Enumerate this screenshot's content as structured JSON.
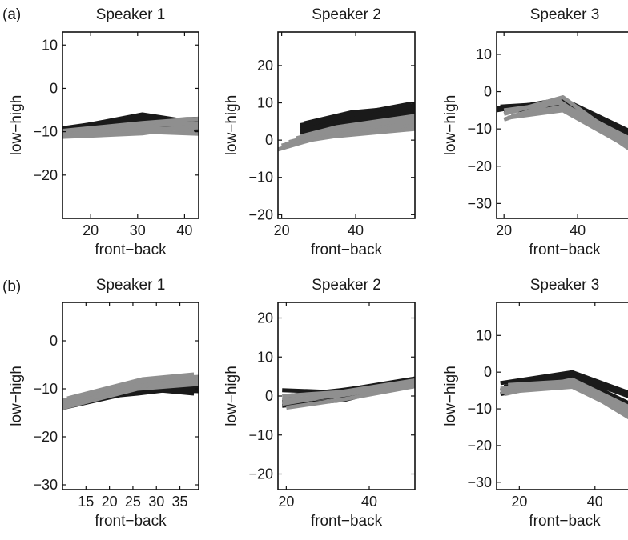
{
  "figure": {
    "row_labels": [
      "(a)",
      "(b)"
    ]
  },
  "colors": {
    "dark": "#1a1a1a",
    "gray": "#8f8f8f",
    "frame": "#111111"
  },
  "chart_data": [
    {
      "type": "line",
      "title": "Speaker 1",
      "xlabel": "front−back",
      "ylabel": "low−high",
      "xlim": [
        14,
        43
      ],
      "ylim": [
        -30,
        13
      ],
      "xticks": [
        20,
        30,
        40
      ],
      "yticks": [
        -20,
        -10,
        0,
        10
      ],
      "grid": false,
      "series": [
        {
          "color": "dark",
          "lines": [
            [
              [
                14,
                -9.5
              ],
              [
                31,
                -6
              ],
              [
                43,
                -8
              ]
            ],
            [
              [
                14,
                -9.2
              ],
              [
                31,
                -6.6
              ],
              [
                43,
                -9.5
              ]
            ],
            [
              [
                14,
                -10
              ],
              [
                31,
                -7.6
              ],
              [
                43,
                -7
              ]
            ],
            [
              [
                14,
                -10.5
              ],
              [
                31,
                -8
              ],
              [
                43,
                -10
              ]
            ],
            [
              [
                15,
                -9.8
              ],
              [
                30,
                -7
              ],
              [
                42,
                -8.5
              ]
            ]
          ]
        },
        {
          "color": "gray",
          "lines": [
            [
              [
                14,
                -10.5
              ],
              [
                31,
                -8.5
              ],
              [
                43,
                -8
              ]
            ],
            [
              [
                14,
                -10
              ],
              [
                31,
                -9.5
              ],
              [
                43,
                -9
              ]
            ],
            [
              [
                15,
                -11
              ],
              [
                31,
                -10
              ],
              [
                43,
                -10.5
              ]
            ],
            [
              [
                14,
                -9.8
              ],
              [
                31,
                -8
              ],
              [
                43,
                -7
              ]
            ],
            [
              [
                16,
                -10.6
              ],
              [
                30,
                -9
              ],
              [
                42,
                -9.6
              ]
            ],
            [
              [
                14,
                -11.2
              ],
              [
                31,
                -10.4
              ],
              [
                43,
                -8.5
              ]
            ]
          ]
        }
      ]
    },
    {
      "type": "line",
      "title": "Speaker 2",
      "xlabel": "front−back",
      "ylabel": "low−high",
      "xlim": [
        19,
        56
      ],
      "ylim": [
        -21,
        29
      ],
      "xticks": [
        20,
        40
      ],
      "yticks": [
        -20,
        -10,
        0,
        10,
        20
      ],
      "grid": false,
      "series": [
        {
          "color": "dark",
          "lines": [
            [
              [
                25,
                4
              ],
              [
                39,
                6.5
              ],
              [
                56,
                9.5
              ]
            ],
            [
              [
                25,
                3.5
              ],
              [
                39,
                6
              ],
              [
                56,
                8.5
              ]
            ],
            [
              [
                26,
                3
              ],
              [
                39,
                5.5
              ],
              [
                56,
                8
              ]
            ],
            [
              [
                25,
                2.5
              ],
              [
                39,
                5
              ],
              [
                56,
                7
              ]
            ],
            [
              [
                26,
                4.5
              ],
              [
                39,
                7.5
              ],
              [
                56,
                9
              ]
            ],
            [
              [
                25,
                1.5
              ],
              [
                39,
                4.2
              ],
              [
                56,
                6.5
              ]
            ],
            [
              [
                27,
                2
              ],
              [
                39,
                4.5
              ],
              [
                56,
                5.5
              ]
            ],
            [
              [
                25,
                3.8
              ],
              [
                40,
                7
              ],
              [
                55,
                9.8
              ]
            ]
          ]
        },
        {
          "color": "gray",
          "lines": [
            [
              [
                19,
                -2.5
              ],
              [
                33,
                1.5
              ],
              [
                56,
                4
              ]
            ],
            [
              [
                20,
                -1.5
              ],
              [
                33,
                2
              ],
              [
                56,
                5
              ]
            ],
            [
              [
                22,
                -0.5
              ],
              [
                34,
                2.5
              ],
              [
                56,
                6
              ]
            ],
            [
              [
                24,
                0.5
              ],
              [
                34,
                3
              ],
              [
                56,
                5.5
              ]
            ],
            [
              [
                21,
                -1
              ],
              [
                34,
                1
              ],
              [
                56,
                3
              ]
            ],
            [
              [
                25,
                1
              ],
              [
                35,
                3.5
              ],
              [
                56,
                6.5
              ]
            ]
          ]
        }
      ]
    },
    {
      "type": "line",
      "title": "Speaker 3",
      "xlabel": "front−back",
      "ylabel": "low−high",
      "xlim": [
        18,
        55
      ],
      "ylim": [
        -34,
        16
      ],
      "xticks": [
        20,
        40
      ],
      "yticks": [
        -30,
        -20,
        -10,
        0,
        10
      ],
      "grid": false,
      "series": [
        {
          "color": "dark",
          "lines": [
            [
              [
                18,
                -5
              ],
              [
                36,
                -2
              ],
              [
                55,
                -12
              ]
            ],
            [
              [
                19,
                -4
              ],
              [
                36,
                -3
              ],
              [
                55,
                -14
              ]
            ],
            [
              [
                20,
                -5.5
              ],
              [
                35,
                -3.5
              ],
              [
                55,
                -13
              ]
            ],
            [
              [
                18,
                -4.5
              ],
              [
                37,
                -2.5
              ],
              [
                55,
                -11
              ]
            ]
          ]
        },
        {
          "color": "gray",
          "lines": [
            [
              [
                20,
                -6
              ],
              [
                36,
                -1.5
              ],
              [
                55,
                -15
              ]
            ],
            [
              [
                21,
                -7
              ],
              [
                36,
                -5
              ],
              [
                55,
                -15.5
              ]
            ],
            [
              [
                20,
                -5
              ],
              [
                35,
                -3
              ],
              [
                55,
                -13
              ]
            ],
            [
              [
                22,
                -6.5
              ],
              [
                36,
                -4
              ],
              [
                55,
                -14
              ]
            ],
            [
              [
                20,
                -7.5
              ],
              [
                35,
                -2.5
              ],
              [
                55,
                -16
              ]
            ]
          ]
        }
      ]
    },
    {
      "type": "line",
      "title": "Speaker 1",
      "xlabel": "front−back",
      "ylabel": "low−high",
      "xlim": [
        10,
        39
      ],
      "ylim": [
        -31,
        8
      ],
      "xticks": [
        15,
        20,
        25,
        30,
        35
      ],
      "yticks": [
        -30,
        -20,
        -10,
        0
      ],
      "grid": false,
      "series": [
        {
          "color": "dark",
          "lines": [
            [
              [
                10,
                -13
              ],
              [
                26,
                -10
              ],
              [
                39,
                -10.5
              ]
            ],
            [
              [
                10,
                -14
              ],
              [
                26,
                -10.5
              ],
              [
                39,
                -10
              ]
            ],
            [
              [
                10,
                -12.5
              ],
              [
                26,
                -11
              ],
              [
                39,
                -9.5
              ]
            ],
            [
              [
                11,
                -13.5
              ],
              [
                27,
                -10
              ],
              [
                38,
                -11
              ]
            ]
          ]
        },
        {
          "color": "gray",
          "lines": [
            [
              [
                10,
                -12.5
              ],
              [
                26,
                -8.5
              ],
              [
                39,
                -7.5
              ]
            ],
            [
              [
                10,
                -13
              ],
              [
                26,
                -9
              ],
              [
                39,
                -8.5
              ]
            ],
            [
              [
                10,
                -14
              ],
              [
                26,
                -10
              ],
              [
                39,
                -9
              ]
            ],
            [
              [
                11,
                -12
              ],
              [
                27,
                -8
              ],
              [
                38,
                -7
              ]
            ],
            [
              [
                10,
                -13.5
              ],
              [
                26,
                -9.5
              ],
              [
                39,
                -8
              ]
            ]
          ]
        }
      ]
    },
    {
      "type": "line",
      "title": "Speaker 2",
      "xlabel": "front−back",
      "ylabel": "low−high",
      "xlim": [
        18,
        51
      ],
      "ylim": [
        -24,
        24
      ],
      "xticks": [
        20,
        40
      ],
      "yticks": [
        -20,
        -10,
        0,
        10,
        20
      ],
      "grid": false,
      "series": [
        {
          "color": "dark",
          "lines": [
            [
              [
                19,
                1.5
              ],
              [
                31,
                1
              ],
              [
                51,
                4.5
              ]
            ],
            [
              [
                19,
                -2.5
              ],
              [
                34,
                -1
              ],
              [
                51,
                3.5
              ]
            ],
            [
              [
                20,
                0
              ],
              [
                33,
                1.5
              ],
              [
                51,
                4
              ]
            ],
            [
              [
                19,
                -1.5
              ],
              [
                33,
                0
              ],
              [
                51,
                3
              ]
            ]
          ]
        },
        {
          "color": "gray",
          "lines": [
            [
              [
                19,
                -2
              ],
              [
                33,
                0.5
              ],
              [
                51,
                3.5
              ]
            ],
            [
              [
                19,
                -1
              ],
              [
                32,
                0
              ],
              [
                51,
                3
              ]
            ],
            [
              [
                20,
                -3
              ],
              [
                33,
                -1
              ],
              [
                51,
                2.5
              ]
            ],
            [
              [
                19,
                0
              ],
              [
                33,
                1
              ],
              [
                51,
                4
              ]
            ]
          ]
        }
      ]
    },
    {
      "type": "line",
      "title": "Speaker 3",
      "xlabel": "front−back",
      "ylabel": "low−high",
      "xlim": [
        14,
        50
      ],
      "ylim": [
        -32,
        19
      ],
      "xticks": [
        20,
        40
      ],
      "yticks": [
        -30,
        -20,
        -10,
        0,
        10
      ],
      "grid": false,
      "series": [
        {
          "color": "dark",
          "lines": [
            [
              [
                15,
                -3
              ],
              [
                34,
                0
              ],
              [
                50,
                -6
              ]
            ],
            [
              [
                15,
                -5
              ],
              [
                34,
                -1
              ],
              [
                50,
                -9
              ]
            ],
            [
              [
                16,
                -4
              ],
              [
                33,
                -0.5
              ],
              [
                50,
                -7
              ]
            ],
            [
              [
                15,
                -6
              ],
              [
                34,
                -2
              ],
              [
                50,
                -11
              ]
            ]
          ]
        },
        {
          "color": "gray",
          "lines": [
            [
              [
                15,
                -4.5
              ],
              [
                34,
                -3
              ],
              [
                50,
                -13
              ]
            ],
            [
              [
                16,
                -6
              ],
              [
                34,
                -2
              ],
              [
                50,
                -10
              ]
            ],
            [
              [
                15,
                -5.5
              ],
              [
                34,
                -4
              ],
              [
                50,
                -12
              ]
            ],
            [
              [
                17,
                -3.5
              ],
              [
                33,
                -2.5
              ],
              [
                50,
                -11
              ]
            ]
          ]
        }
      ]
    }
  ]
}
